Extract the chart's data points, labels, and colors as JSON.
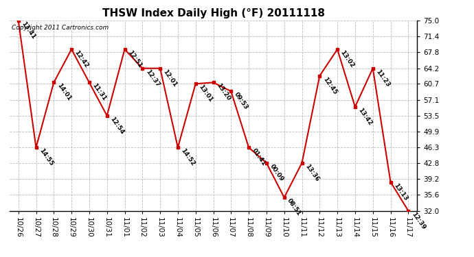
{
  "title": "THSW Index Daily High (°F) 20111118",
  "copyright": "Copyright 2011 Cartronics.com",
  "dates": [
    "10/26",
    "10/27",
    "10/28",
    "10/29",
    "10/30",
    "10/31",
    "11/01",
    "11/02",
    "11/03",
    "11/04",
    "11/05",
    "11/06",
    "11/07",
    "11/08",
    "11/09",
    "11/10",
    "11/11",
    "11/12",
    "11/13",
    "11/14",
    "11/15",
    "11/16",
    "11/17"
  ],
  "values": [
    75.0,
    46.3,
    61.0,
    68.5,
    61.0,
    53.5,
    68.5,
    64.2,
    64.2,
    46.3,
    60.7,
    61.0,
    59.0,
    46.3,
    42.8,
    35.0,
    42.8,
    62.5,
    68.5,
    55.5,
    64.2,
    38.5,
    32.0
  ],
  "labels": [
    "13:41",
    "14:55",
    "14:01",
    "12:42",
    "11:31",
    "12:54",
    "12:51",
    "12:37",
    "12:01",
    "14:52",
    "13:01",
    "13:20",
    "09:53",
    "01:41",
    "00:09",
    "08:51",
    "13:36",
    "12:45",
    "13:02",
    "13:42",
    "11:23",
    "13:13",
    "12:39"
  ],
  "line_color": "#cc0000",
  "marker_color": "#cc0000",
  "bg_color": "#ffffff",
  "grid_color": "#bbbbbb",
  "yticks": [
    32.0,
    35.6,
    39.2,
    42.8,
    46.3,
    49.9,
    53.5,
    57.1,
    60.7,
    64.2,
    67.8,
    71.4,
    75.0
  ],
  "ymin": 32.0,
  "ymax": 75.0,
  "title_fontsize": 11,
  "label_fontsize": 6.5,
  "tick_fontsize": 7.5,
  "copyright_fontsize": 6.5
}
